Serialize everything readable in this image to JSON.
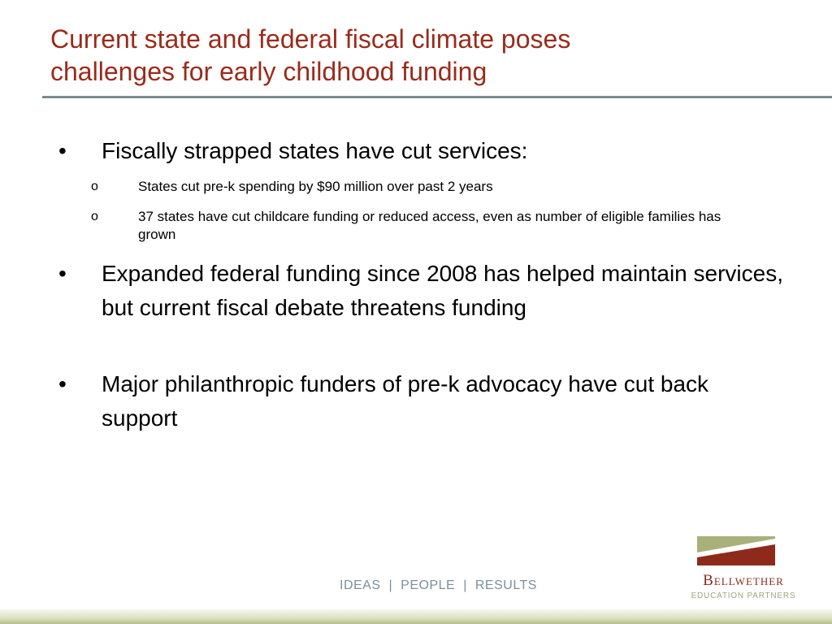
{
  "slide": {
    "title_lines": [
      "Current state and federal fiscal climate poses",
      "challenges for early childhood funding"
    ],
    "bullets": [
      {
        "marker": "•",
        "text": "Fiscally strapped states have cut services:"
      },
      {
        "marker": "•",
        "text": "Expanded federal funding since 2008 has helped maintain services, but current fiscal debate threatens funding"
      },
      {
        "marker": "•",
        "text": "Major philanthropic funders of pre-k advocacy have cut back support"
      }
    ],
    "sub_bullets": [
      {
        "marker": "o",
        "text": "States cut pre-k spending by $90 million over past 2 years"
      },
      {
        "marker": "o",
        "text": "37 states have cut childcare funding or reduced access, even as number of eligible families has grown"
      }
    ]
  },
  "footer": {
    "tagline": [
      "IDEAS",
      "PEOPLE",
      "RESULTS"
    ],
    "separator": "|"
  },
  "logo": {
    "name": "Bellwether",
    "tagline": "EDUCATION PARTNERS"
  },
  "colors": {
    "title": "#9b2b1a",
    "title_rule": "#7d8b92",
    "logo_green": "#a9b07a",
    "logo_red": "#8e2a1c",
    "logo_tag": "#a1a57a",
    "footer_text": "#7a8fa0"
  }
}
